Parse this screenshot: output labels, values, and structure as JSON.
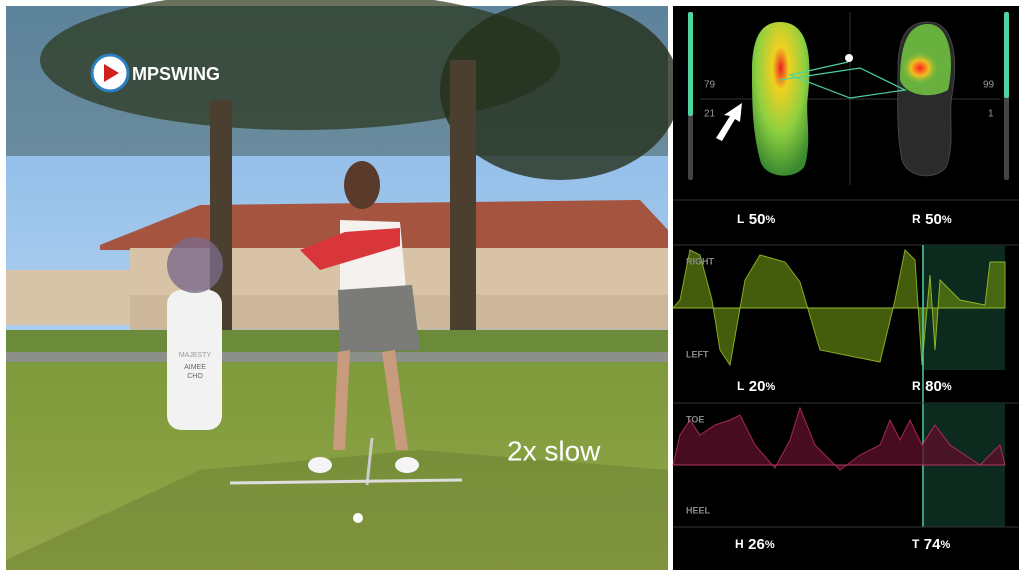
{
  "video": {
    "logo": "MPSWING",
    "overlay": "2x slow",
    "bag": {
      "brand": "MAJESTY",
      "name_first": "AIMEE",
      "name_last": "CHO"
    }
  },
  "pressure_panel": {
    "foot_map": {
      "left_top": "79",
      "left_bottom": "21",
      "right_top": "99",
      "right_bottom": "1"
    },
    "balance": {
      "left": {
        "side": "L",
        "value": "50",
        "unit": "%"
      },
      "right": {
        "side": "R",
        "value": "50",
        "unit": "%"
      }
    },
    "lateral_chart": {
      "top_label": "RIGHT",
      "bottom_label": "LEFT",
      "left": {
        "side": "L",
        "value": "20",
        "unit": "%"
      },
      "right": {
        "side": "R",
        "value": "80",
        "unit": "%"
      }
    },
    "toe_heel_chart": {
      "top_label": "TOE",
      "bottom_label": "HEEL",
      "heel": {
        "side": "H",
        "value": "26",
        "unit": "%"
      },
      "toe": {
        "side": "T",
        "value": "74",
        "unit": "%"
      }
    }
  }
}
